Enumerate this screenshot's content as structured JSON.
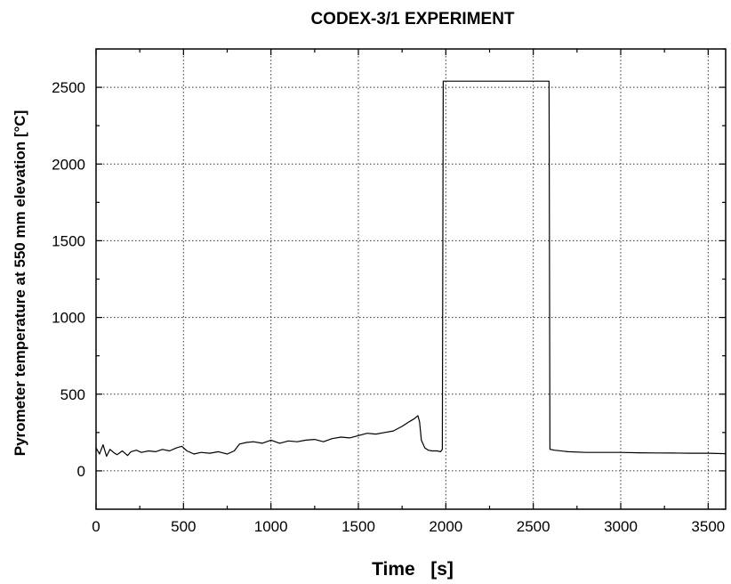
{
  "chart_data": {
    "type": "line",
    "title": "CODEX-3/1  EXPERIMENT",
    "xlabel": "Time   [s]",
    "ylabel": "Pyrometer temperature at 550 mm elevation [°C]",
    "xlim": [
      0,
      3600
    ],
    "ylim": [
      -250,
      2750
    ],
    "xticks": [
      0,
      500,
      1000,
      1500,
      2000,
      2500,
      3000,
      3500
    ],
    "yticks": [
      0,
      500,
      1000,
      1500,
      2000,
      2500
    ],
    "grid": true,
    "series": [
      {
        "color": "#000000",
        "x": [
          0,
          20,
          40,
          60,
          80,
          100,
          120,
          150,
          180,
          200,
          230,
          260,
          300,
          340,
          380,
          420,
          460,
          490,
          520,
          560,
          600,
          650,
          700,
          750,
          790,
          820,
          860,
          900,
          950,
          1000,
          1050,
          1100,
          1150,
          1200,
          1250,
          1300,
          1350,
          1400,
          1450,
          1500,
          1550,
          1600,
          1650,
          1700,
          1750,
          1790,
          1820,
          1840,
          1850,
          1860,
          1880,
          1900,
          1920,
          1950,
          1970,
          1980,
          1985,
          1990,
          2000,
          2100,
          2200,
          2300,
          2400,
          2500,
          2550,
          2580,
          2590,
          2595,
          2600,
          2620,
          2700,
          2800,
          2900,
          3000,
          3100,
          3200,
          3300,
          3400,
          3500,
          3600
        ],
        "y": [
          150,
          110,
          170,
          95,
          140,
          120,
          105,
          130,
          100,
          125,
          135,
          120,
          130,
          125,
          140,
          130,
          150,
          160,
          130,
          110,
          120,
          115,
          125,
          110,
          130,
          175,
          185,
          190,
          180,
          200,
          180,
          195,
          190,
          200,
          205,
          190,
          210,
          220,
          215,
          230,
          245,
          240,
          250,
          260,
          290,
          320,
          340,
          360,
          320,
          200,
          150,
          135,
          130,
          130,
          125,
          140,
          2540,
          2540,
          2540,
          2540,
          2540,
          2540,
          2540,
          2540,
          2540,
          2540,
          2540,
          140,
          140,
          135,
          125,
          120,
          120,
          120,
          118,
          117,
          116,
          115,
          115,
          112
        ]
      }
    ]
  }
}
